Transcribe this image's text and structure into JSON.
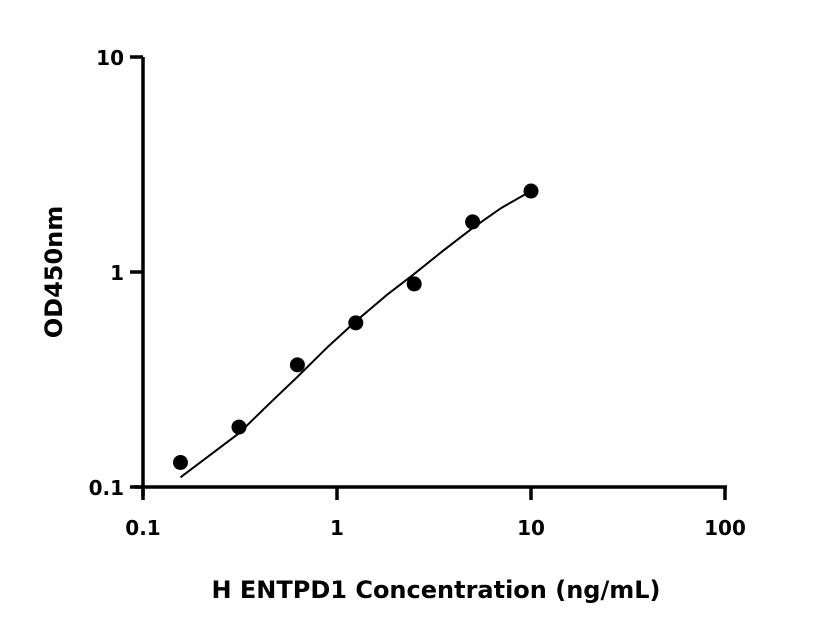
{
  "chart_data": {
    "type": "scatter",
    "title": "",
    "xlabel": "H ENTPD1 Concentration (ng/mL)",
    "ylabel": "OD450nm",
    "xscale": "log",
    "yscale": "log",
    "xlim": [
      0.1,
      100
    ],
    "ylim": [
      0.1,
      10
    ],
    "xticks": [
      0.1,
      1,
      10,
      100
    ],
    "xtick_labels": [
      "0.1",
      "1",
      "10",
      "100"
    ],
    "yticks": [
      0.1,
      1,
      10
    ],
    "ytick_labels": [
      "0.1",
      "1",
      "10"
    ],
    "grid": false,
    "legend": "none",
    "points": [
      {
        "x": 0.156,
        "y": 0.13
      },
      {
        "x": 0.3125,
        "y": 0.19
      },
      {
        "x": 0.625,
        "y": 0.37
      },
      {
        "x": 1.25,
        "y": 0.58
      },
      {
        "x": 2.5,
        "y": 0.88
      },
      {
        "x": 5,
        "y": 1.71
      },
      {
        "x": 10,
        "y": 2.38
      }
    ],
    "fit_curve": [
      {
        "x": 0.156,
        "y": 0.111
      },
      {
        "x": 0.22,
        "y": 0.14
      },
      {
        "x": 0.3125,
        "y": 0.178
      },
      {
        "x": 0.45,
        "y": 0.245
      },
      {
        "x": 0.625,
        "y": 0.325
      },
      {
        "x": 0.9,
        "y": 0.45
      },
      {
        "x": 1.25,
        "y": 0.59
      },
      {
        "x": 1.8,
        "y": 0.78
      },
      {
        "x": 2.5,
        "y": 0.98
      },
      {
        "x": 3.5,
        "y": 1.25
      },
      {
        "x": 5,
        "y": 1.6
      },
      {
        "x": 7,
        "y": 1.98
      },
      {
        "x": 10,
        "y": 2.38
      }
    ],
    "colors": {
      "points": "#000000",
      "line": "#000000"
    }
  }
}
